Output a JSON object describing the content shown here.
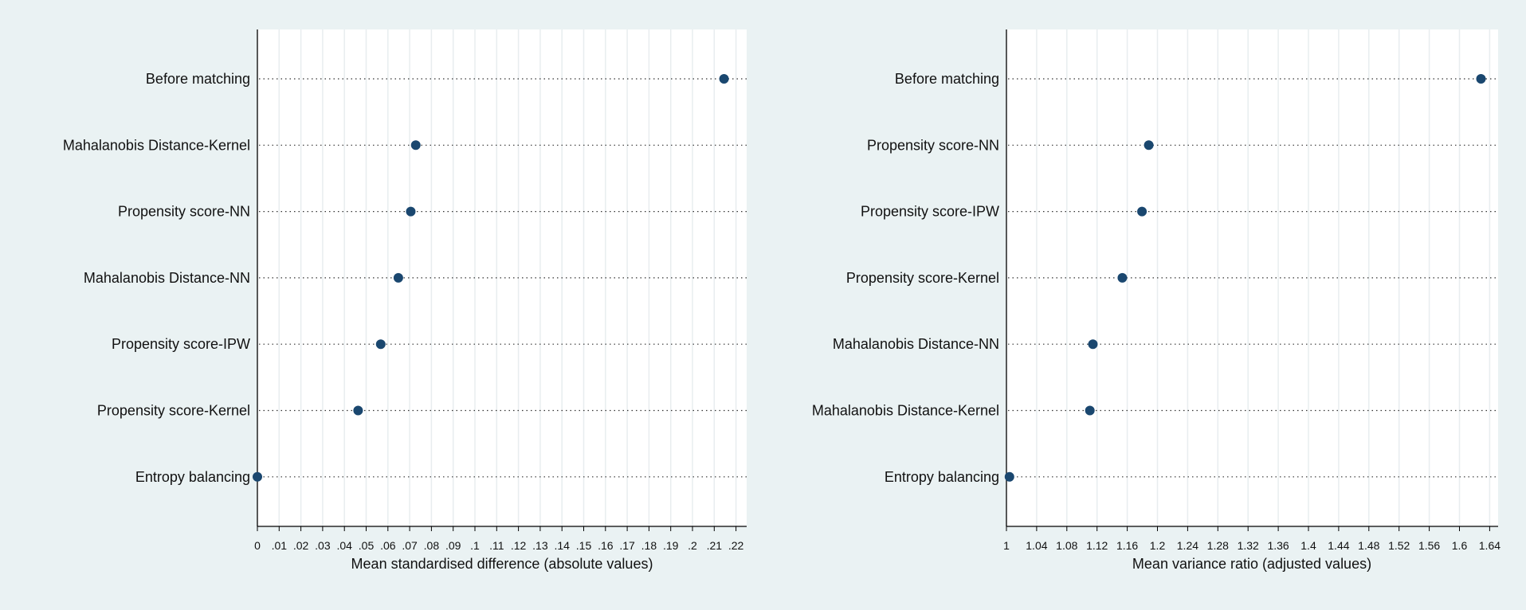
{
  "colors": {
    "background": "#eaf2f3",
    "plot_area": "#ffffff",
    "grid": "#e8edef",
    "marker": "#1a476f",
    "guide": "#333333"
  },
  "chart_data": [
    {
      "type": "scatter",
      "style": "dot-plot",
      "xlabel": "Mean standardised difference (absolute values)",
      "xlim": [
        0,
        0.225
      ],
      "xticks": [
        "0",
        ".01",
        ".02",
        ".03",
        ".04",
        ".05",
        ".06",
        ".07",
        ".08",
        ".09",
        ".1",
        ".11",
        ".12",
        ".13",
        ".14",
        ".15",
        ".16",
        ".17",
        ".18",
        ".19",
        ".2",
        ".21",
        ".22"
      ],
      "xtick_values": [
        0,
        0.01,
        0.02,
        0.03,
        0.04,
        0.05,
        0.06,
        0.07,
        0.08,
        0.09,
        0.1,
        0.11,
        0.12,
        0.13,
        0.14,
        0.15,
        0.16,
        0.17,
        0.18,
        0.19,
        0.2,
        0.21,
        0.22
      ],
      "grid": true,
      "categories": [
        "Before matching",
        "Mahalanobis Distance-Kernel",
        "Propensity score-NN",
        "Mahalanobis Distance-NN",
        "Propensity score-IPW",
        "Propensity score-Kernel",
        "Entropy balancing"
      ],
      "values": [
        0.2145,
        0.0728,
        0.0705,
        0.0648,
        0.0567,
        0.0463,
        0.0
      ]
    },
    {
      "type": "scatter",
      "style": "dot-plot",
      "xlabel": "Mean variance ratio (adjusted values)",
      "xlim": [
        1,
        1.645
      ],
      "xticks": [
        "1",
        "1.04",
        "1.08",
        "1.12",
        "1.16",
        "1.2",
        "1.24",
        "1.28",
        "1.32",
        "1.36",
        "1.4",
        "1.44",
        "1.48",
        "1.52",
        "1.56",
        "1.6",
        "1.64"
      ],
      "xtick_values": [
        1,
        1.04,
        1.08,
        1.12,
        1.16,
        1.2,
        1.24,
        1.28,
        1.32,
        1.36,
        1.4,
        1.44,
        1.48,
        1.52,
        1.56,
        1.6,
        1.64
      ],
      "grid": true,
      "categories": [
        "Before matching",
        "Propensity score-NN",
        "Propensity score-IPW",
        "Propensity score-Kernel",
        "Mahalanobis Distance-NN",
        "Mahalanobis Distance-Kernel",
        "Entropy balancing"
      ],
      "values": [
        1.6285,
        1.1885,
        1.1795,
        1.1535,
        1.1145,
        1.1105,
        1.004
      ]
    }
  ]
}
